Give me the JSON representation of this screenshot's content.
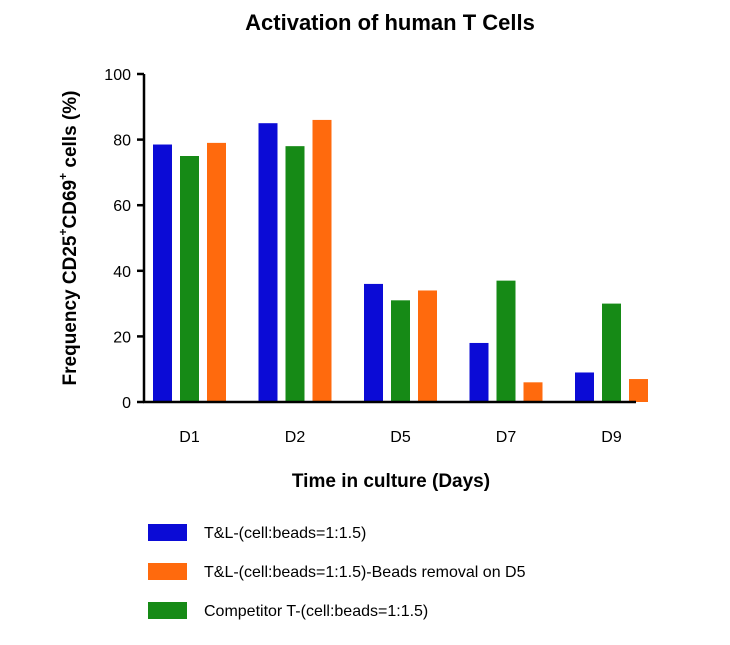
{
  "chart_data": {
    "type": "bar",
    "title": "Activation of human T Cells",
    "xlabel": "Time in culture (Days)",
    "ylabel_parts": [
      "Frequency CD25",
      "+",
      "CD69",
      "+",
      " cells (%)"
    ],
    "ylim": [
      0,
      100
    ],
    "yticks": [
      "0",
      "20",
      "40",
      "60",
      "80",
      "100"
    ],
    "categories": [
      "D1",
      "D2",
      "D5",
      "D7",
      "D9"
    ],
    "series": [
      {
        "name": "T&L-(cell:beads=1:1.5)",
        "color": "#0b0bd6",
        "values": [
          78.5,
          85,
          36,
          18,
          9
        ]
      },
      {
        "name": "Competitor T-(cell:beads=1:1.5)",
        "color": "#168a16",
        "values": [
          75,
          78,
          31,
          37,
          30
        ]
      },
      {
        "name": "T&L-(cell:beads=1:1.5)-Beads removal on D5",
        "color": "#ff6a0d",
        "values": [
          79,
          86,
          34,
          6,
          7
        ]
      }
    ],
    "legend_order": [
      0,
      2,
      1
    ],
    "legend_position": "bottom-left"
  }
}
